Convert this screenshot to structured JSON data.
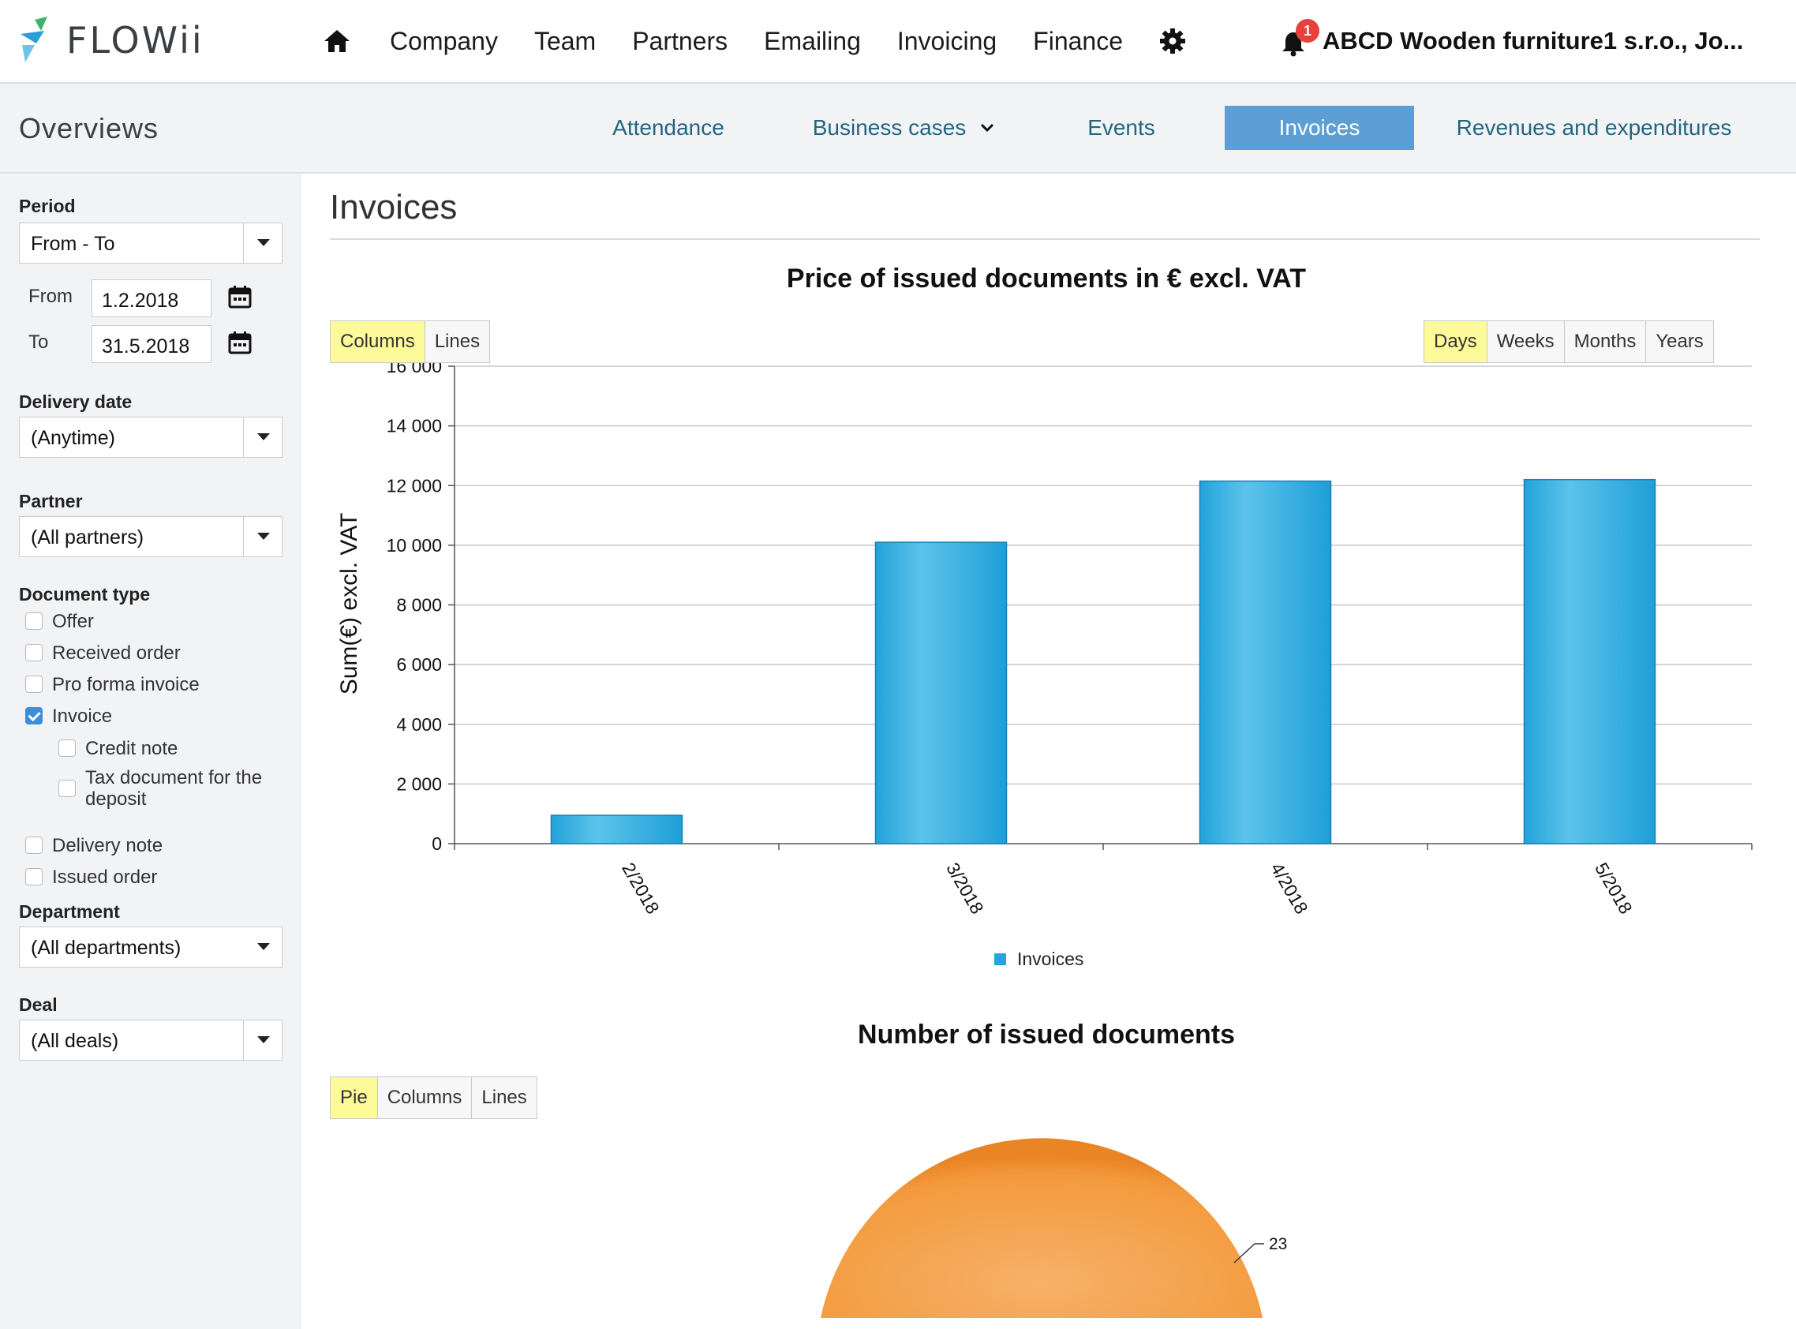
{
  "app": {
    "logo_text": "FLOWii"
  },
  "nav": {
    "items": [
      "Company",
      "Team",
      "Partners",
      "Emailing",
      "Invoicing",
      "Finance"
    ],
    "notification_count": "1",
    "account_name": "ABCD Wooden furniture1 s.r.o., Jo..."
  },
  "subnav": {
    "title": "Overviews",
    "tabs": [
      {
        "label": "Attendance"
      },
      {
        "label": "Business cases"
      },
      {
        "label": "Events"
      },
      {
        "label": "Invoices"
      },
      {
        "label": "Revenues and expenditures"
      }
    ],
    "active_tab": "Invoices"
  },
  "filters": {
    "period_label": "Period",
    "period_value": "From - To",
    "from_label": "From",
    "from_value": "1.2.2018",
    "to_label": "To",
    "to_value": "31.5.2018",
    "delivery_label": "Delivery date",
    "delivery_value": "(Anytime)",
    "partner_label": "Partner",
    "partner_value": "(All partners)",
    "doctype_label": "Document type",
    "doctypes": [
      {
        "label": "Offer",
        "checked": false
      },
      {
        "label": "Received order",
        "checked": false
      },
      {
        "label": "Pro forma invoice",
        "checked": false
      },
      {
        "label": "Invoice",
        "checked": true
      },
      {
        "label": "Credit note",
        "checked": false
      },
      {
        "label": "Tax document for the deposit",
        "checked": false
      },
      {
        "label": "Delivery note",
        "checked": false
      },
      {
        "label": "Issued order",
        "checked": false
      }
    ],
    "department_label": "Department",
    "department_value": "(All departments)",
    "deal_label": "Deal",
    "deal_value": "(All deals)"
  },
  "main": {
    "title": "Invoices",
    "chart1_title": "Price of issued documents in € excl. VAT",
    "chart1_type_buttons": [
      "Columns",
      "Lines"
    ],
    "chart1_type_active": "Columns",
    "chart1_period_buttons": [
      "Days",
      "Weeks",
      "Months",
      "Years"
    ],
    "chart1_period_active": "Days",
    "chart2_title": "Number of issued documents",
    "chart2_type_buttons": [
      "Pie",
      "Columns",
      "Lines"
    ],
    "chart2_type_active": "Pie"
  },
  "chart_data": [
    {
      "type": "bar",
      "title": "Price of issued documents in € excl. VAT",
      "ylabel": "Sum(€) excl. VAT",
      "xlabel": "",
      "categories": [
        "2/2018",
        "3/2018",
        "4/2018",
        "5/2018"
      ],
      "series": [
        {
          "name": "Invoices",
          "values": [
            950,
            10100,
            12150,
            12200
          ],
          "color": "#24a6dc"
        }
      ],
      "ylim": [
        0,
        16000
      ],
      "yticks": [
        "0",
        "2 000",
        "4 000",
        "6 000",
        "8 000",
        "10 000",
        "12 000",
        "14 000",
        "16 000"
      ],
      "grid": true,
      "legend": "bottom-center"
    },
    {
      "type": "pie",
      "title": "Number of issued documents",
      "slices": [
        {
          "label": "23",
          "value": 23,
          "color": "#f39a3c"
        }
      ]
    }
  ]
}
